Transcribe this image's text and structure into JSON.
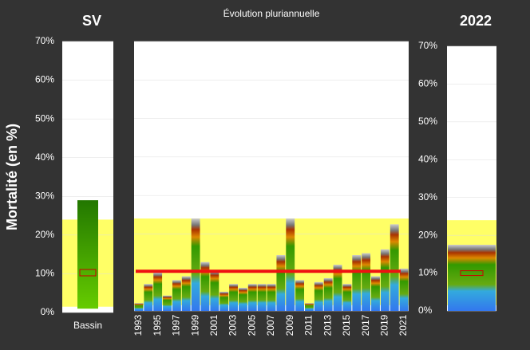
{
  "chart_data": {
    "type": "bar",
    "title": "Évolution pluriannuelle",
    "ylabel": "Mortalité (en %)",
    "ylim": [
      0,
      70
    ],
    "yticks": [
      {
        "value": 0,
        "label": "0%"
      },
      {
        "value": 10,
        "label": "10%"
      },
      {
        "value": 20,
        "label": "20%"
      },
      {
        "value": 30,
        "label": "30%"
      },
      {
        "value": 40,
        "label": "40%"
      },
      {
        "value": 50,
        "label": "50%"
      },
      {
        "value": 60,
        "label": "60%"
      },
      {
        "value": 70,
        "label": "70%"
      }
    ],
    "categories": [
      "1993",
      null,
      "1995",
      null,
      "1997",
      null,
      "1999",
      null,
      "2001",
      null,
      "2003",
      null,
      "2005",
      null,
      "2007",
      null,
      "2009",
      null,
      "2011",
      null,
      "2013",
      null,
      "2015",
      null,
      "2017",
      null,
      "2019",
      null,
      "2021"
    ],
    "values": [
      2,
      7,
      10,
      4,
      8,
      9,
      24,
      12.7,
      10.5,
      5,
      7,
      6,
      7,
      7,
      7,
      14.5,
      24,
      8,
      2,
      7.5,
      8.5,
      12,
      7,
      14.5,
      15,
      9,
      16,
      22.5,
      11
    ],
    "reference_band": [
      1.5,
      24
    ],
    "mean_line": 10.3,
    "band_color": "#ffff66",
    "line_color": "#ee1111",
    "left_panel": {
      "title": "SV",
      "category": "Bassin",
      "range": [
        1,
        29
      ],
      "median": 10.3
    },
    "right_panel": {
      "title": "2022",
      "value": 17.5,
      "median": 10
    }
  }
}
